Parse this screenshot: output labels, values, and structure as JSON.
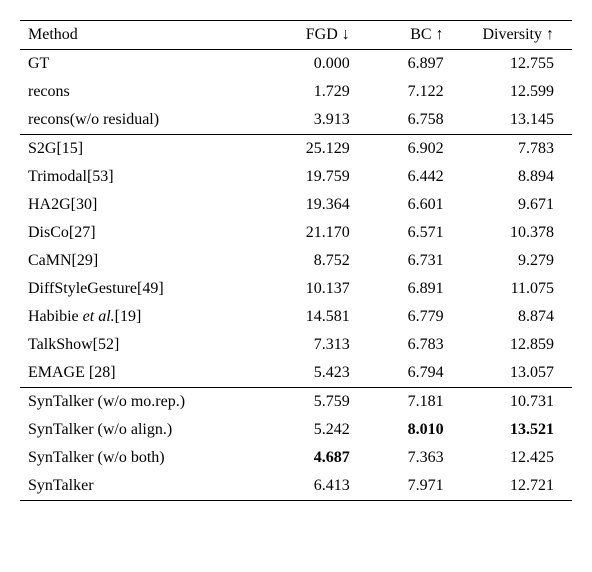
{
  "headers": {
    "method": "Method",
    "fgd": "FGD ↓",
    "bc": "BC ↑",
    "diversity": "Diversity ↑"
  },
  "groups": [
    {
      "rows": [
        {
          "method": "GT",
          "fgd": "0.000",
          "bc": "6.897",
          "diversity": "12.755"
        },
        {
          "method": "recons",
          "fgd": "1.729",
          "bc": "7.122",
          "diversity": "12.599"
        },
        {
          "method": "recons(w/o residual)",
          "fgd": "3.913",
          "bc": "6.758",
          "diversity": "13.145"
        }
      ]
    },
    {
      "rows": [
        {
          "method": "S2G[15]",
          "fgd": "25.129",
          "bc": "6.902",
          "diversity": "7.783"
        },
        {
          "method": "Trimodal[53]",
          "fgd": "19.759",
          "bc": "6.442",
          "diversity": "8.894"
        },
        {
          "method": "HA2G[30]",
          "fgd": "19.364",
          "bc": "6.601",
          "diversity": "9.671"
        },
        {
          "method": "DisCo[27]",
          "fgd": "21.170",
          "bc": "6.571",
          "diversity": "10.378"
        },
        {
          "method": "CaMN[29]",
          "fgd": "8.752",
          "bc": "6.731",
          "diversity": "9.279"
        },
        {
          "method": "DiffStyleGesture[49]",
          "fgd": "10.137",
          "bc": "6.891",
          "diversity": "11.075"
        },
        {
          "method_html": "Habibie <span class=\"italic\">et al.</span>[19]",
          "fgd": "14.581",
          "bc": "6.779",
          "diversity": "8.874"
        },
        {
          "method": "TalkShow[52]",
          "fgd": "7.313",
          "bc": "6.783",
          "diversity": "12.859"
        },
        {
          "method": "EMAGE [28]",
          "fgd": "5.423",
          "bc": "6.794",
          "diversity": "13.057"
        }
      ]
    },
    {
      "rows": [
        {
          "method": "SynTalker (w/o mo.rep.)",
          "fgd": "5.759",
          "bc": "7.181",
          "diversity": "10.731"
        },
        {
          "method": "SynTalker (w/o align.)",
          "fgd": "5.242",
          "bc": "8.010",
          "bc_bold": true,
          "diversity": "13.521",
          "diversity_bold": true
        },
        {
          "method": "SynTalker (w/o both)",
          "fgd": "4.687",
          "fgd_bold": true,
          "bc": "7.363",
          "diversity": "12.425"
        },
        {
          "method": "SynTalker",
          "fgd": "6.413",
          "bc": "7.971",
          "diversity": "12.721"
        }
      ]
    }
  ],
  "style": {
    "font_family": "Georgia, Times New Roman, Times, serif",
    "font_size": 16,
    "text_color": "#000000",
    "background_color": "#ffffff",
    "border_color": "#000000",
    "outer_border_width": 1.5,
    "inner_border_width": 0.75
  }
}
